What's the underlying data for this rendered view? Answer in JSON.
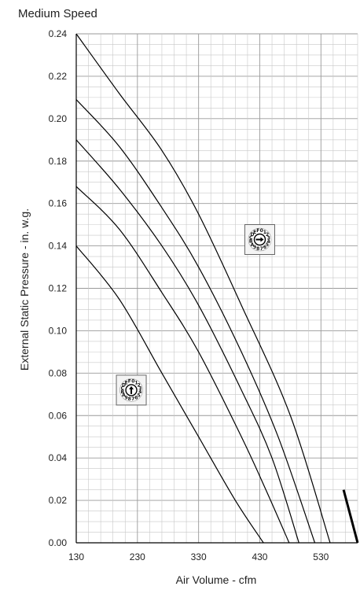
{
  "chart_data": {
    "type": "line",
    "title": "Medium Speed",
    "xlabel": "Air Volume - cfm",
    "ylabel": "External Static Pressure - in. w.g.",
    "xlim": [
      130,
      590
    ],
    "ylim": [
      0,
      0.24
    ],
    "x_ticks": [
      130,
      230,
      330,
      430,
      530
    ],
    "x_tick_labels": [
      "130",
      "230",
      "330",
      "430",
      "530"
    ],
    "y_ticks": [
      0,
      0.02,
      0.04,
      0.06,
      0.08,
      0.1,
      0.12,
      0.14,
      0.16,
      0.18,
      0.2,
      0.22,
      0.24
    ],
    "y_tick_labels": [
      "0.00",
      "0.02",
      "0.04",
      "0.06",
      "0.08",
      "0.10",
      "0.12",
      "0.14",
      "0.16",
      "0.18",
      "0.20",
      "0.22",
      "0.24"
    ],
    "grid": true,
    "series": [
      {
        "values": [
          [
            130,
            0.14
          ],
          [
            200,
            0.115
          ],
          [
            270,
            0.08
          ],
          [
            330,
            0.05
          ],
          [
            390,
            0.02
          ],
          [
            436,
            0.0
          ]
        ]
      },
      {
        "values": [
          [
            130,
            0.168
          ],
          [
            200,
            0.148
          ],
          [
            270,
            0.118
          ],
          [
            330,
            0.09
          ],
          [
            400,
            0.05
          ],
          [
            440,
            0.025
          ],
          [
            478,
            0.0
          ]
        ]
      },
      {
        "values": [
          [
            130,
            0.19
          ],
          [
            200,
            0.167
          ],
          [
            270,
            0.14
          ],
          [
            330,
            0.112
          ],
          [
            400,
            0.072
          ],
          [
            450,
            0.04
          ],
          [
            494,
            0.0
          ]
        ]
      },
      {
        "values": [
          [
            130,
            0.209
          ],
          [
            200,
            0.187
          ],
          [
            270,
            0.158
          ],
          [
            330,
            0.13
          ],
          [
            400,
            0.09
          ],
          [
            460,
            0.05
          ],
          [
            520,
            0.0
          ]
        ]
      },
      {
        "values": [
          [
            130,
            0.24
          ],
          [
            200,
            0.212
          ],
          [
            270,
            0.185
          ],
          [
            330,
            0.155
          ],
          [
            400,
            0.112
          ],
          [
            480,
            0.06
          ],
          [
            545,
            0.0
          ]
        ]
      }
    ],
    "bold_segment": [
      [
        567,
        0.025
      ],
      [
        590,
        0.0
      ]
    ],
    "dial_icons": [
      {
        "name": "dial-setting-a",
        "labels": "0123456789ABCDEF",
        "arrow": "up",
        "anchor": [
          220,
          0.072
        ]
      },
      {
        "name": "dial-setting-b",
        "labels": "0123456789ABCDEF",
        "arrow": "right",
        "anchor": [
          430,
          0.143
        ]
      }
    ]
  }
}
